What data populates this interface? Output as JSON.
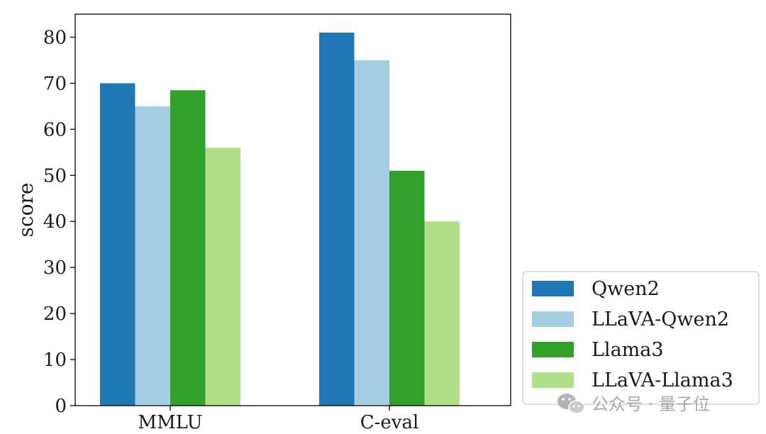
{
  "chart_data": {
    "type": "bar",
    "categories": [
      "MMLU",
      "C-eval"
    ],
    "series": [
      {
        "name": "Qwen2",
        "values": [
          70,
          81
        ],
        "color": "#1f78b4"
      },
      {
        "name": "LLaVA-Qwen2",
        "values": [
          65,
          75
        ],
        "color": "#a6cee3"
      },
      {
        "name": "Llama3",
        "values": [
          68.5,
          51
        ],
        "color": "#33a02c"
      },
      {
        "name": "LLaVA-Llama3",
        "values": [
          56,
          40
        ],
        "color": "#b2df8a"
      }
    ],
    "ylabel": "score",
    "xlabel": "",
    "title": "",
    "ylim": [
      0,
      85
    ],
    "yticks": [
      0,
      10,
      20,
      30,
      40,
      50,
      60,
      70,
      80
    ],
    "grid": false,
    "legend_placement": "bottom-right, outside plot"
  },
  "watermark": {
    "text": "公众号 · 量子位",
    "icon": "wechat-icon"
  }
}
